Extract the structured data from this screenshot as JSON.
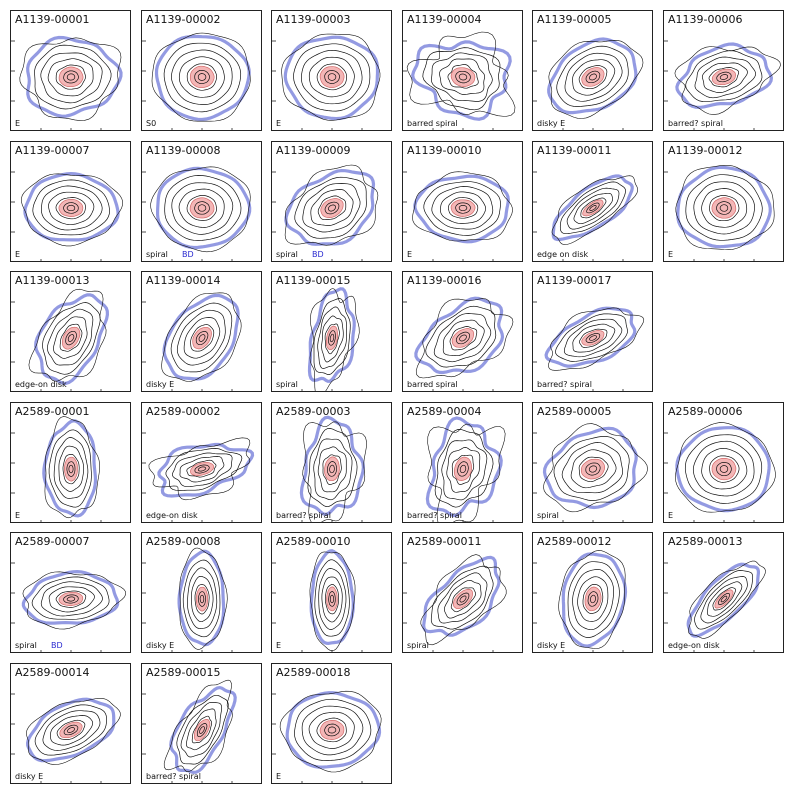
{
  "colors": {
    "outer_contour": "#6f78d8",
    "inner_fill": "#f4b6b6",
    "inner_contour": "#d36a6a",
    "contour": "#111111",
    "frame": "#222222",
    "bd_label": "#2a2ad0"
  },
  "panels": [
    {
      "id": "A1139-00001",
      "type": "E",
      "bd": ""
    },
    {
      "id": "A1139-00002",
      "type": "S0",
      "bd": ""
    },
    {
      "id": "A1139-00003",
      "type": "E",
      "bd": ""
    },
    {
      "id": "A1139-00004",
      "type": "barred spiral",
      "bd": ""
    },
    {
      "id": "A1139-00005",
      "type": "disky E",
      "bd": ""
    },
    {
      "id": "A1139-00006",
      "type": "barred? spiral",
      "bd": ""
    },
    {
      "id": "A1139-00007",
      "type": "E",
      "bd": ""
    },
    {
      "id": "A1139-00008",
      "type": "spiral",
      "bd": "BD"
    },
    {
      "id": "A1139-00009",
      "type": "spiral",
      "bd": "BD"
    },
    {
      "id": "A1139-00010",
      "type": "E",
      "bd": ""
    },
    {
      "id": "A1139-00011",
      "type": "edge on disk",
      "bd": ""
    },
    {
      "id": "A1139-00012",
      "type": "E",
      "bd": ""
    },
    {
      "id": "A1139-00013",
      "type": "edge-on disk",
      "bd": ""
    },
    {
      "id": "A1139-00014",
      "type": "disky E",
      "bd": ""
    },
    {
      "id": "A1139-00015",
      "type": "spiral",
      "bd": ""
    },
    {
      "id": "A1139-00016",
      "type": "barred spiral",
      "bd": ""
    },
    {
      "id": "A1139-00017",
      "type": "barred? spiral",
      "bd": ""
    },
    null,
    {
      "id": "A2589-00001",
      "type": "E",
      "bd": ""
    },
    {
      "id": "A2589-00002",
      "type": "edge-on disk",
      "bd": ""
    },
    {
      "id": "A2589-00003",
      "type": "barred? spiral",
      "bd": ""
    },
    {
      "id": "A2589-00004",
      "type": "barred? spiral",
      "bd": ""
    },
    {
      "id": "A2589-00005",
      "type": "spiral",
      "bd": ""
    },
    {
      "id": "A2589-00006",
      "type": "E",
      "bd": ""
    },
    {
      "id": "A2589-00007",
      "type": "spiral",
      "bd": "BD"
    },
    {
      "id": "A2589-00008",
      "type": "disky E",
      "bd": ""
    },
    {
      "id": "A2589-00010",
      "type": "E",
      "bd": ""
    },
    {
      "id": "A2589-00011",
      "type": "spiral",
      "bd": ""
    },
    {
      "id": "A2589-00012",
      "type": "disky E",
      "bd": ""
    },
    {
      "id": "A2589-00013",
      "type": "edge-on disk",
      "bd": ""
    },
    {
      "id": "A2589-00014",
      "type": "disky E",
      "bd": ""
    },
    {
      "id": "A2589-00015",
      "type": "barred? spiral",
      "bd": ""
    },
    {
      "id": "A2589-00018",
      "type": "E",
      "bd": ""
    }
  ]
}
